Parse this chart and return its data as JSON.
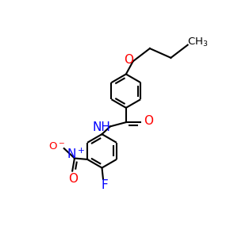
{
  "bg_color": "#ffffff",
  "bond_color": "#000000",
  "O_color": "#ff0000",
  "N_color": "#0000ff",
  "F_color": "#0000ff",
  "bond_width": 1.5,
  "figsize": [
    3.0,
    3.0
  ],
  "dpi": 100,
  "CH3_label": "CH$_3$",
  "O_label": "O",
  "NH_label": "NH",
  "O_amide_label": "O",
  "NO2_N_label": "N$^+$",
  "NO2_O1_label": "O$^-$",
  "NO2_O2_label": "O",
  "F_label": "F",
  "plus_label": "+"
}
